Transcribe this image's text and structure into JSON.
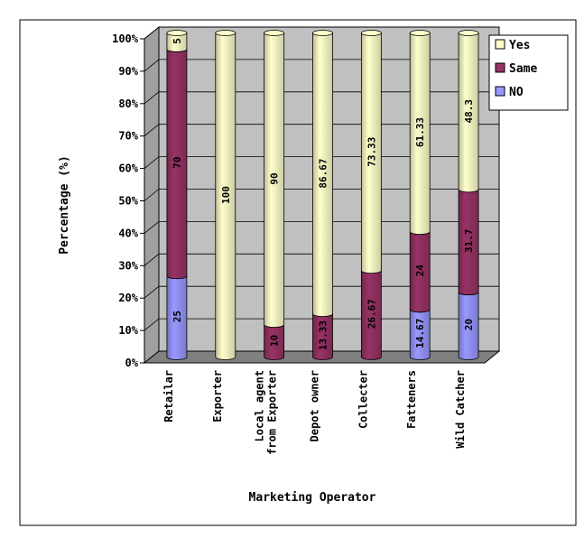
{
  "chart_data": {
    "type": "bar",
    "stacked": true,
    "percent": true,
    "categories": [
      "Retailar",
      "Exporter",
      "Local agent\nfrom Exporter",
      "Depot owner",
      "Collecter",
      "Fatteners",
      "Wild Catcher"
    ],
    "series": [
      {
        "name": "NO",
        "color": "#9999ff",
        "values": [
          25,
          0,
          0,
          0,
          0,
          14.67,
          20
        ],
        "labels": [
          "25",
          "",
          "",
          "",
          "",
          "14.67",
          "20"
        ]
      },
      {
        "name": "Same",
        "color": "#993366",
        "values": [
          70,
          0,
          10,
          13.33,
          26.67,
          24,
          31.7
        ],
        "labels": [
          "70",
          "",
          "10",
          "13.33",
          "26.67",
          "24",
          "31.7"
        ]
      },
      {
        "name": "Yes",
        "color": "#ffffcc",
        "values": [
          5,
          100,
          90,
          86.67,
          73.33,
          61.33,
          48.3
        ],
        "labels": [
          "5",
          "100",
          "90",
          "86.67",
          "73.33",
          "61.33",
          "48.3"
        ]
      }
    ],
    "title": "",
    "xlabel": "Marketing Operator",
    "ylabel": "Percentage (%)",
    "ylim": [
      0,
      100
    ],
    "yticks": [
      "0%",
      "10%",
      "20%",
      "30%",
      "40%",
      "50%",
      "60%",
      "70%",
      "80%",
      "90%",
      "100%"
    ],
    "legend_position": "right",
    "legend_order": [
      "Yes",
      "Same",
      "NO"
    ],
    "plot_background": "#c0c0c0"
  }
}
